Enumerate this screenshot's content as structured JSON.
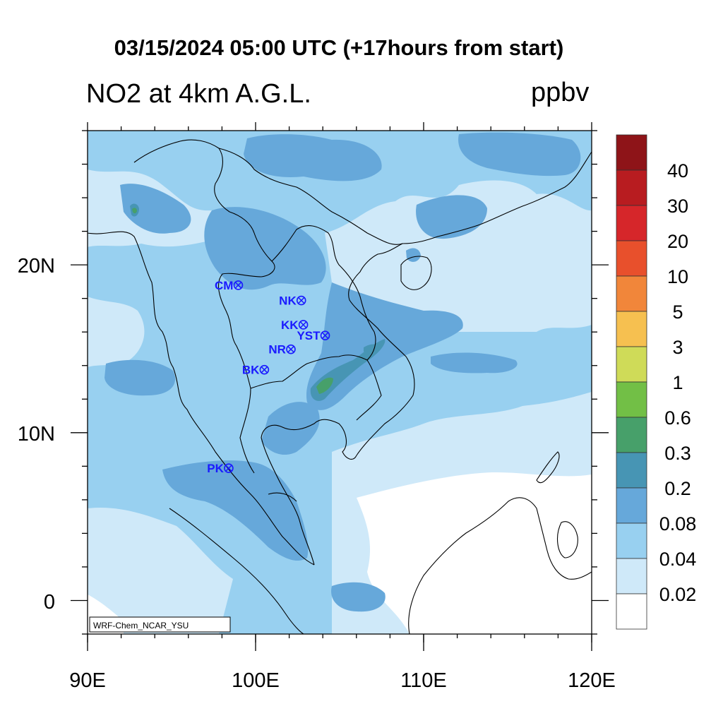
{
  "title": "03/15/2024 05:00 UTC (+17hours from start)",
  "variable_label": "NO2 at 4km A.G.L.",
  "units": "ppbv",
  "credit": "WRF-Chem_NCAR_YSU",
  "axes": {
    "x_ticks": [
      "90E",
      "100E",
      "110E",
      "120E"
    ],
    "y_ticks": [
      "20N",
      "10N",
      "0"
    ],
    "lon_range": [
      90,
      120
    ],
    "lat_range": [
      -2,
      28
    ]
  },
  "colorbar": {
    "labels": [
      "40",
      "30",
      "20",
      "10",
      "5",
      "3",
      "1",
      "0.6",
      "0.3",
      "0.2",
      "0.08",
      "0.04",
      "0.02"
    ],
    "colors": [
      "#8e1418",
      "#b81c20",
      "#d6262a",
      "#e8502c",
      "#f1863a",
      "#f6c050",
      "#cfdb58",
      "#72bf46",
      "#47a06a",
      "#4795b4",
      "#66a8da",
      "#98d0f0",
      "#cfe9f9",
      "#ffffff"
    ]
  },
  "stations": [
    {
      "name": "CM",
      "lon": 98.97,
      "lat": 18.79
    },
    {
      "name": "NK",
      "lon": 102.72,
      "lat": 17.88
    },
    {
      "name": "KK",
      "lon": 102.84,
      "lat": 16.43
    },
    {
      "name": "YST",
      "lon": 104.14,
      "lat": 15.79
    },
    {
      "name": "NR",
      "lon": 102.1,
      "lat": 14.97
    },
    {
      "name": "BK",
      "lon": 100.52,
      "lat": 13.75
    },
    {
      "name": "PK",
      "lon": 98.4,
      "lat": 7.88
    }
  ]
}
